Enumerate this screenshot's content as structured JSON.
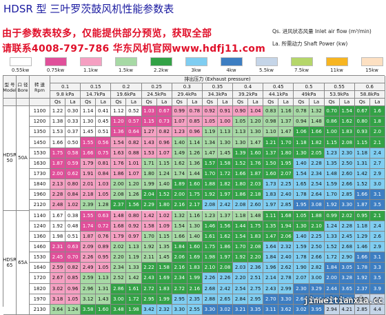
{
  "title": "HDSR 型 三叶罗茨鼓风机性能参数表",
  "promo_line1": "由于参数表较多，仅能提供部分预览，获取全部",
  "promo_line2": "请联系4008-797-786 华东风机官网www.hdfj11.com",
  "note_qs": "Qs. 进风状态风量 Inlet air flow (m³/min)",
  "note_la": "La. 所需动力 Shaft Power (kw)",
  "watermark": "jinweitianxia.cc",
  "legend": [
    {
      "label": "0.55kw",
      "color": "#ffffff"
    },
    {
      "label": "0.75kw",
      "color": "#e0509a"
    },
    {
      "label": "1.1kw",
      "color": "#f5a0c2"
    },
    {
      "label": "1.5kw",
      "color": "#a7d9a5"
    },
    {
      "label": "2.2kw",
      "color": "#33a246"
    },
    {
      "label": "3kw",
      "color": "#7fcdf1"
    },
    {
      "label": "4kw",
      "color": "#3d7ec2"
    },
    {
      "label": "5.5kw",
      "color": "#c5d5e8"
    },
    {
      "label": "7.5kw",
      "color": "#b5d66a"
    },
    {
      "label": "11kw",
      "color": "#f7b521"
    },
    {
      "label": "15kw",
      "color": "#fde0c2"
    }
  ],
  "table": {
    "model_header": "型 号 Model",
    "bore_header": "口 径 Bore",
    "speed_header": "转 速 Rpm",
    "pressure_title": "排出压力 (Exhaust pressure)",
    "qs_label": "Qs",
    "la_label": "La",
    "pressures": [
      {
        "mpa": "0.1",
        "kpa": "9.8 kPa"
      },
      {
        "mpa": "0.15",
        "kpa": "14.7kPa"
      },
      {
        "mpa": "0.2",
        "kpa": "19.6kPa"
      },
      {
        "mpa": "0.25",
        "kpa": "24.5kPa"
      },
      {
        "mpa": "0.3",
        "kpa": "29.4kPa"
      },
      {
        "mpa": "0.35",
        "kpa": "34.3kPa"
      },
      {
        "mpa": "0.4",
        "kpa": "39.2kPa"
      },
      {
        "mpa": "0.45",
        "kpa": "44.1kPa"
      },
      {
        "mpa": "0.5",
        "kpa": "49kPa"
      },
      {
        "mpa": "0.55",
        "kpa": "53.9kPa"
      },
      {
        "mpa": "0.6",
        "kpa": "58.8kPa"
      }
    ],
    "groups": [
      {
        "model": "HDSR 50",
        "bore": "50A",
        "rows": [
          {
            "rpm": "1100",
            "cells": [
              "1.22",
              "0.30",
              "1.14",
              "0.41",
              "1.12",
              "0.52",
              "1.03",
              "0.67",
              "0.99",
              "0.78",
              "0.92",
              "0.91",
              "0.90",
              "1.04",
              "0.83",
              "1.16",
              "0.78",
              "1.32",
              "0.70",
              "1.54",
              "0.67",
              "1.6"
            ]
          },
          {
            "rpm": "1200",
            "cells": [
              "1.38",
              "0.33",
              "1.30",
              "0.45",
              "1.20",
              "0.57",
              "1.15",
              "0.73",
              "1.07",
              "0.85",
              "1.05",
              "1.00",
              "1.05",
              "1.20",
              "0.98",
              "1.37",
              "0.94",
              "1.48",
              "0.86",
              "1.62",
              "0.80",
              "1.8"
            ]
          },
          {
            "rpm": "1350",
            "cells": [
              "1.53",
              "0.37",
              "1.45",
              "0.51",
              "1.36",
              "0.64",
              "1.27",
              "0.82",
              "1.23",
              "0.96",
              "1.19",
              "1.13",
              "1.13",
              "1.30",
              "1.10",
              "1.47",
              "1.06",
              "1.66",
              "1.00",
              "1.83",
              "0.93",
              "2.0"
            ]
          },
          {
            "rpm": "1450",
            "cells": [
              "1.66",
              "0.50",
              "1.55",
              "0.56",
              "1.54",
              "0.82",
              "1.43",
              "0.96",
              "1.40",
              "1.14",
              "1.34",
              "1.30",
              "1.30",
              "1.47",
              "1.21",
              "1.70",
              "1.18",
              "1.82",
              "1.15",
              "2.08",
              "1.15",
              "2.1"
            ]
          },
          {
            "rpm": "1530",
            "cells": [
              "1.75",
              "0.58",
              "1.66",
              "0.75",
              "1.63",
              "0.88",
              "1.53",
              "1.07",
              "1.49",
              "1.26",
              "1.47",
              "1.45",
              "1.39",
              "1.60",
              "1.37",
              "1.80",
              "1.30",
              "2.05",
              "1.23",
              "2.30",
              "1.18",
              "2.4"
            ]
          },
          {
            "rpm": "1630",
            "cells": [
              "1.87",
              "0.59",
              "1.79",
              "0.81",
              "1.76",
              "1.01",
              "1.71",
              "1.15",
              "1.62",
              "1.36",
              "1.57",
              "1.58",
              "1.52",
              "1.76",
              "1.50",
              "1.95",
              "1.40",
              "2.28",
              "1.35",
              "2.50",
              "1.31",
              "2.7"
            ]
          },
          {
            "rpm": "1730",
            "cells": [
              "2.00",
              "0.62",
              "1.91",
              "0.84",
              "1.86",
              "1.07",
              "1.80",
              "1.24",
              "1.74",
              "1.44",
              "1.70",
              "1.72",
              "1.66",
              "1.87",
              "1.60",
              "2.07",
              "1.54",
              "2.34",
              "1.48",
              "2.60",
              "1.42",
              "2.9"
            ]
          },
          {
            "rpm": "1840",
            "cells": [
              "2.13",
              "0.80",
              "2.01",
              "1.03",
              "2.00",
              "1.20",
              "1.99",
              "1.40",
              "1.89",
              "1.60",
              "1.88",
              "1.82",
              "1.80",
              "2.03",
              "1.73",
              "2.25",
              "1.65",
              "2.54",
              "1.59",
              "2.66",
              "1.52",
              "3.0"
            ]
          },
          {
            "rpm": "1960",
            "cells": [
              "2.28",
              "0.84",
              "2.18",
              "1.05",
              "2.08",
              "1.26",
              "2.04",
              "1.52",
              "2.00",
              "1.75",
              "1.92",
              "1.97",
              "1.86",
              "2.18",
              "1.83",
              "2.40",
              "1.78",
              "2.64",
              "1.70",
              "2.85",
              "1.66",
              "3.1"
            ]
          },
          {
            "rpm": "2120",
            "cells": [
              "2.48",
              "1.02",
              "2.39",
              "1.28",
              "2.37",
              "1.56",
              "2.29",
              "1.80",
              "2.16",
              "2.17",
              "2.08",
              "2.42",
              "2.08",
              "2.60",
              "1.97",
              "2.85",
              "1.95",
              "3.08",
              "1.92",
              "3.30",
              "1.87",
              "3.5"
            ]
          }
        ]
      },
      {
        "model": "HDSR 65",
        "bore": "65A",
        "rows": [
          {
            "rpm": "1140",
            "cells": [
              "1.67",
              "0.38",
              "1.55",
              "0.63",
              "1.48",
              "0.80",
              "1.42",
              "1.02",
              "1.32",
              "1.16",
              "1.23",
              "1.37",
              "1.18",
              "1.48",
              "1.11",
              "1.68",
              "1.05",
              "1.88",
              "0.99",
              "2.02",
              "0.95",
              "2.1"
            ]
          },
          {
            "rpm": "1240",
            "cells": [
              "1.92",
              "0.48",
              "1.74",
              "0.72",
              "1.68",
              "0.92",
              "1.58",
              "1.09",
              "1.54",
              "1.30",
              "1.46",
              "1.56",
              "1.44",
              "1.75",
              "1.35",
              "1.94",
              "1.30",
              "2.10",
              "1.24",
              "2.28",
              "1.18",
              "2.4"
            ]
          },
          {
            "rpm": "1360",
            "cells": [
              "1.98",
              "0.51",
              "1.87",
              "0.76",
              "1.79",
              "0.97",
              "1.70",
              "1.15",
              "1.66",
              "1.40",
              "1.61",
              "1.62",
              "1.54",
              "1.83",
              "1.47",
              "2.06",
              "1.40",
              "2.25",
              "1.33",
              "2.45",
              "1.29",
              "2.6"
            ]
          },
          {
            "rpm": "1460",
            "cells": [
              "2.31",
              "0.63",
              "2.09",
              "0.89",
              "2.02",
              "1.13",
              "1.92",
              "1.35",
              "1.84",
              "1.60",
              "1.75",
              "1.86",
              "1.70",
              "2.08",
              "1.64",
              "2.32",
              "1.59",
              "2.50",
              "1.52",
              "2.68",
              "1.46",
              "2.9"
            ]
          },
          {
            "rpm": "1530",
            "cells": [
              "2.45",
              "0.70",
              "2.26",
              "0.95",
              "2.20",
              "1.19",
              "2.11",
              "1.45",
              "2.06",
              "1.69",
              "1.98",
              "1.97",
              "1.92",
              "2.20",
              "1.84",
              "2.40",
              "1.78",
              "2.66",
              "1.72",
              "2.90",
              "1.66",
              "3.1"
            ]
          },
          {
            "rpm": "1640",
            "cells": [
              "2.59",
              "0.82",
              "2.49",
              "1.05",
              "2.34",
              "1.33",
              "2.22",
              "1.58",
              "2.16",
              "1.83",
              "2.10",
              "2.08",
              "2.03",
              "2.36",
              "1.96",
              "2.62",
              "1.90",
              "2.82",
              "1.84",
              "3.05",
              "1.78",
              "3.3"
            ]
          },
          {
            "rpm": "1720",
            "cells": [
              "2.67",
              "0.85",
              "2.59",
              "1.13",
              "2.52",
              "1.42",
              "2.43",
              "1.69",
              "2.34",
              "1.99",
              "2.26",
              "2.26",
              "2.20",
              "2.51",
              "2.14",
              "2.78",
              "2.07",
              "3.00",
              "2.00",
              "3.28",
              "1.92",
              "3.5"
            ]
          },
          {
            "rpm": "1820",
            "cells": [
              "3.02",
              "0.96",
              "2.96",
              "1.31",
              "2.86",
              "1.61",
              "2.72",
              "1.83",
              "2.72",
              "2.16",
              "2.68",
              "2.42",
              "2.54",
              "2.75",
              "2.43",
              "2.99",
              "2.30",
              "3.29",
              "2.44",
              "3.65",
              "2.37",
              "3.9"
            ]
          },
          {
            "rpm": "1970",
            "cells": [
              "3.18",
              "1.05",
              "3.12",
              "1.43",
              "3.00",
              "1.72",
              "2.95",
              "1.99",
              "2.95",
              "2.35",
              "2.88",
              "2.65",
              "2.84",
              "2.95",
              "2.70",
              "3.30",
              "2.64",
              "3.56",
              "2.58",
              "3.85",
              "2.50",
              "4.1"
            ]
          },
          {
            "rpm": "2130",
            "cells": [
              "3.64",
              "1.24",
              "3.58",
              "1.60",
              "3.48",
              "1.98",
              "3.42",
              "2.32",
              "3.30",
              "2.55",
              "3.30",
              "3.02",
              "3.21",
              "3.35",
              "3.11",
              "3.62",
              "3.02",
              "3.95",
              "2.94",
              "4.21",
              "2.85",
              "4.4"
            ]
          }
        ]
      }
    ]
  }
}
